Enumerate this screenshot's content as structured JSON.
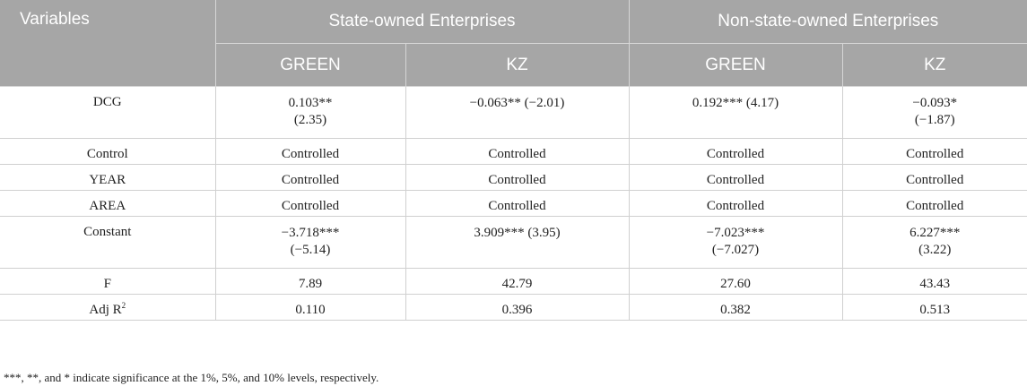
{
  "header": {
    "variables": "Variables",
    "group1": "State-owned Enterprises",
    "group2": "Non-state-owned Enterprises",
    "sub": [
      "GREEN",
      "KZ",
      "GREEN",
      "KZ"
    ]
  },
  "rows": [
    {
      "label": "DCG",
      "cells": [
        [
          "0.103**",
          "(2.35)"
        ],
        [
          "−0.063** (−2.01)"
        ],
        [
          "0.192*** (4.17)"
        ],
        [
          "−0.093*",
          "(−1.87)"
        ]
      ]
    },
    {
      "label": "Control",
      "cells": [
        [
          "Controlled"
        ],
        [
          "Controlled"
        ],
        [
          "Controlled"
        ],
        [
          "Controlled"
        ]
      ]
    },
    {
      "label": "YEAR",
      "cells": [
        [
          "Controlled"
        ],
        [
          "Controlled"
        ],
        [
          "Controlled"
        ],
        [
          "Controlled"
        ]
      ]
    },
    {
      "label": "AREA",
      "cells": [
        [
          "Controlled"
        ],
        [
          "Controlled"
        ],
        [
          "Controlled"
        ],
        [
          "Controlled"
        ]
      ]
    },
    {
      "label": "Constant",
      "cells": [
        [
          "−3.718***",
          "(−5.14)"
        ],
        [
          "3.909*** (3.95)"
        ],
        [
          "−7.023***",
          "(−7.027)"
        ],
        [
          "6.227***",
          "(3.22)"
        ]
      ]
    },
    {
      "label": "F",
      "cells": [
        [
          "7.89"
        ],
        [
          "42.79"
        ],
        [
          "27.60"
        ],
        [
          "43.43"
        ]
      ]
    },
    {
      "label_main": "Adj R",
      "label_sup": "2",
      "cells": [
        [
          "0.110"
        ],
        [
          "0.396"
        ],
        [
          "0.382"
        ],
        [
          "0.513"
        ]
      ]
    }
  ],
  "footnote": "***, **, and * indicate significance at the 1%, 5%, and 10% levels, respectively."
}
